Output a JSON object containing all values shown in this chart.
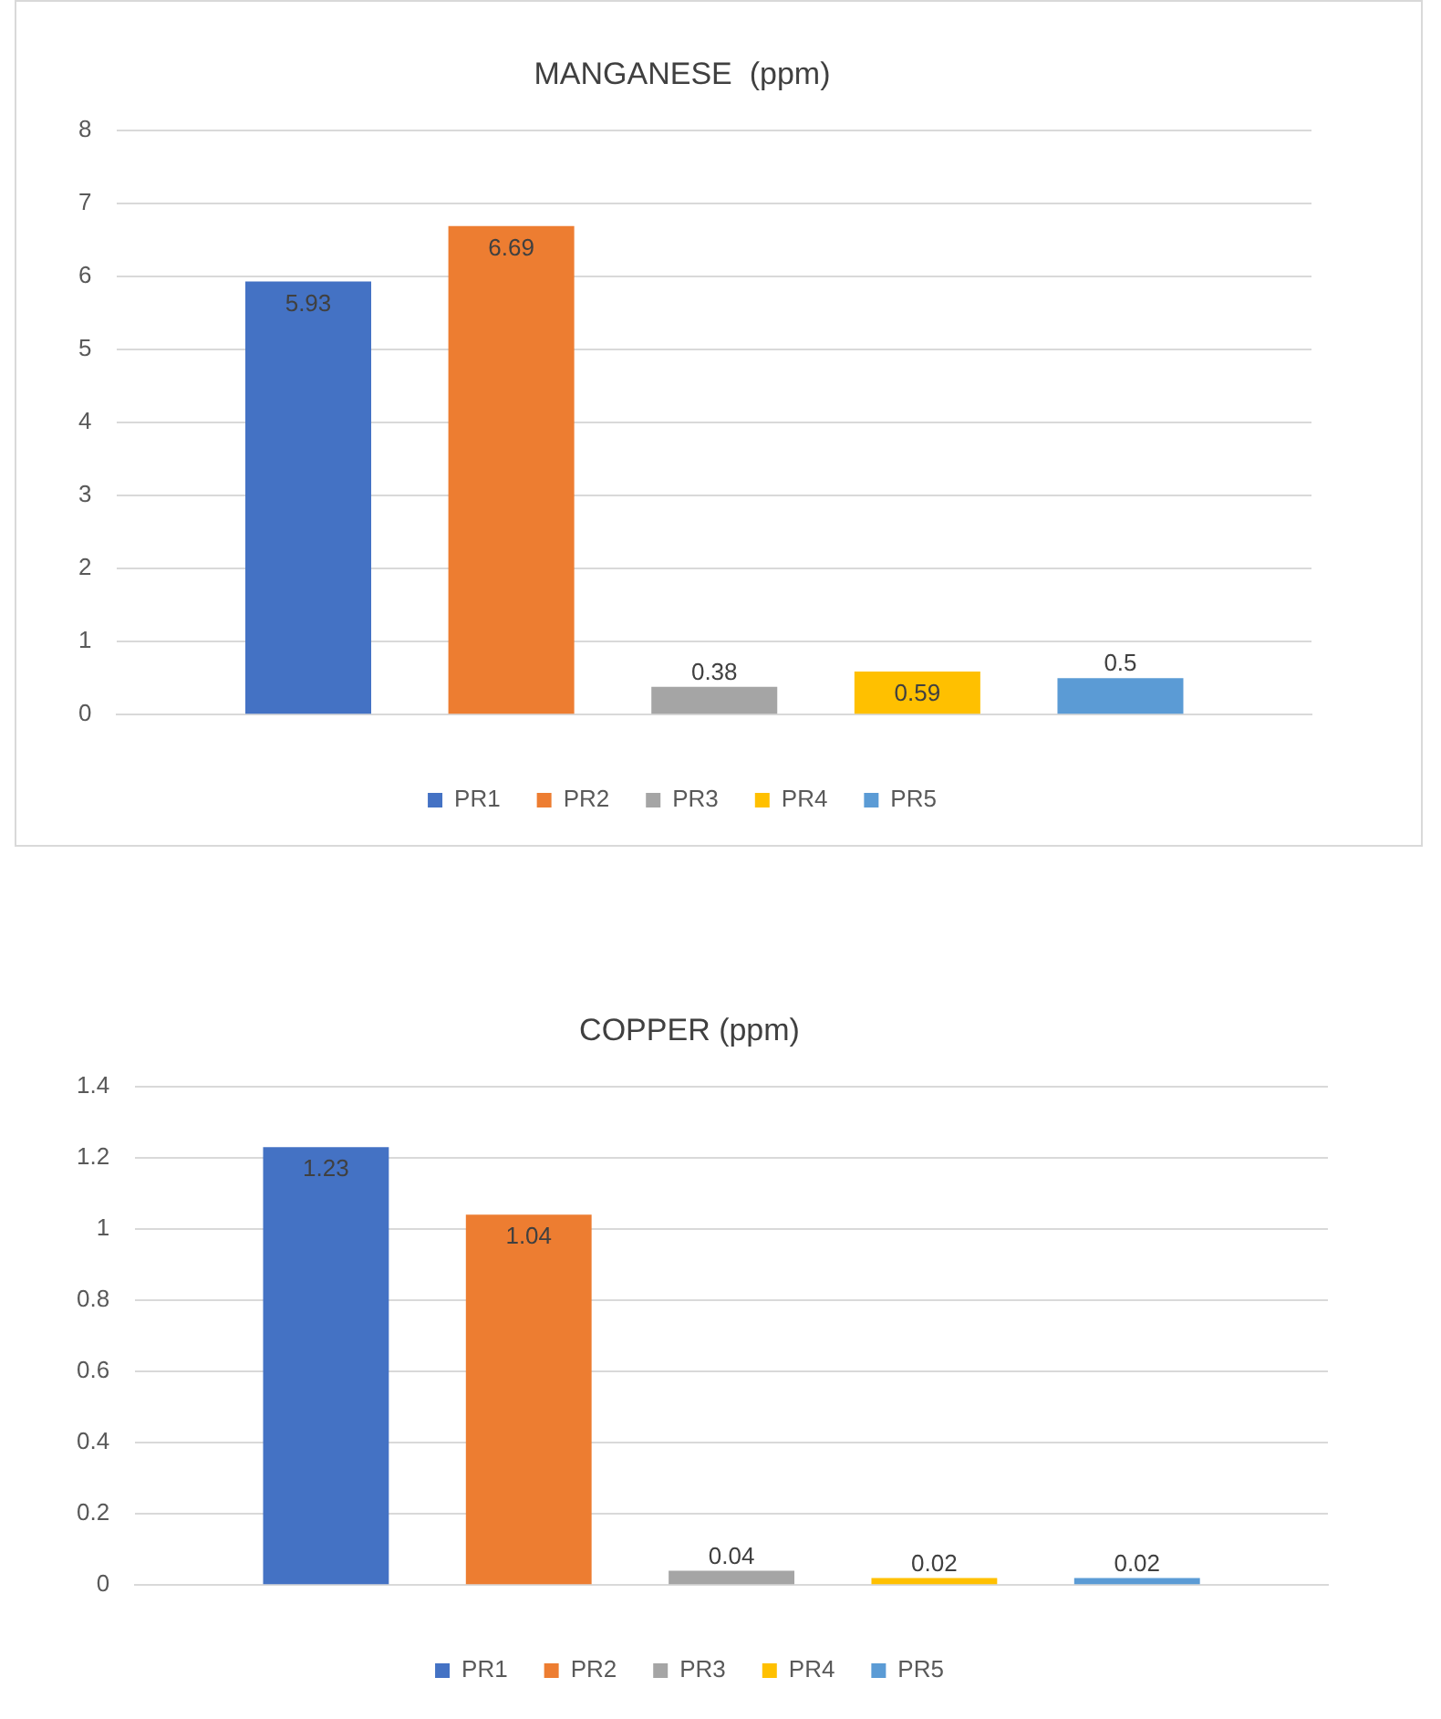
{
  "chart_data": [
    {
      "type": "bar",
      "title": "MANGANESE  (ppm)",
      "categories": [
        null
      ],
      "series": [
        {
          "name": "PR1",
          "color": "#4472c4",
          "values": [
            5.93
          ]
        },
        {
          "name": "PR2",
          "color": "#ed7d31",
          "values": [
            6.69
          ]
        },
        {
          "name": "PR3",
          "color": "#a5a5a5",
          "values": [
            0.38
          ]
        },
        {
          "name": "PR4",
          "color": "#ffc000",
          "values": [
            0.59
          ]
        },
        {
          "name": "PR5",
          "color": "#5b9bd5",
          "values": [
            0.5
          ]
        }
      ],
      "ylim": [
        0,
        8
      ],
      "yticks": [
        0,
        1,
        2,
        3,
        4,
        5,
        6,
        7,
        8
      ],
      "grid": "y",
      "legend": "bottom",
      "data_labels": true
    },
    {
      "type": "bar",
      "title": "COPPER (ppm)",
      "categories": [
        null
      ],
      "series": [
        {
          "name": "PR1",
          "color": "#4472c4",
          "values": [
            1.23
          ]
        },
        {
          "name": "PR2",
          "color": "#ed7d31",
          "values": [
            1.04
          ]
        },
        {
          "name": "PR3",
          "color": "#a5a5a5",
          "values": [
            0.04
          ]
        },
        {
          "name": "PR4",
          "color": "#ffc000",
          "values": [
            0.02
          ]
        },
        {
          "name": "PR5",
          "color": "#5b9bd5",
          "values": [
            0.02
          ]
        }
      ],
      "ylim": [
        0,
        1.4
      ],
      "yticks": [
        0,
        0.2,
        0.4,
        0.6,
        0.8,
        1,
        1.2,
        1.4
      ],
      "grid": "y",
      "legend": "bottom",
      "data_labels": true
    }
  ]
}
